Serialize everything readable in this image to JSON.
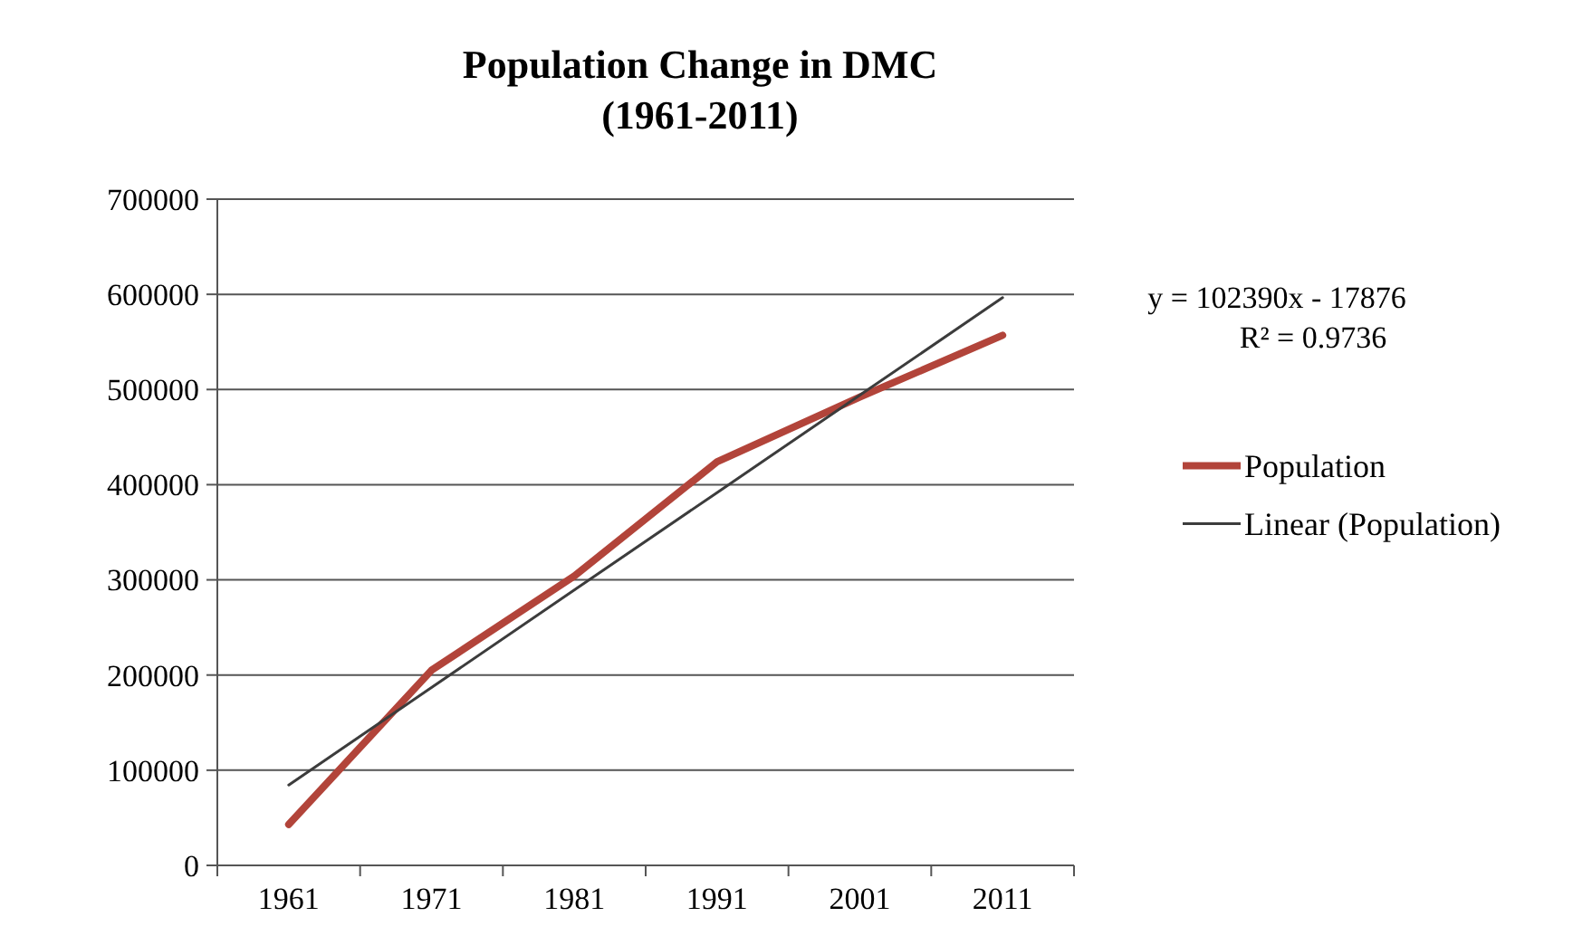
{
  "chart_data": {
    "type": "line",
    "title": "Population Change in DMC",
    "subtitle": "(1961-2011)",
    "categories": [
      "1961",
      "1971",
      "1981",
      "1991",
      "2001",
      "2011"
    ],
    "series": [
      {
        "name": "Population",
        "color": "#b2443a",
        "values": [
          43000,
          205000,
          304000,
          424000,
          492000,
          557000
        ]
      },
      {
        "name": "Linear (Population)",
        "color": "#3c3c3c",
        "values": [
          84514,
          186904,
          289294,
          391684,
          494074,
          596464
        ]
      }
    ],
    "ylim": [
      0,
      700000
    ],
    "yticks": [
      0,
      100000,
      200000,
      300000,
      400000,
      500000,
      600000,
      700000
    ],
    "grid": "y",
    "legend": "right",
    "marker": "none",
    "annotations": [
      "y = 102390x - 17876",
      "R² = 0.9736"
    ]
  }
}
